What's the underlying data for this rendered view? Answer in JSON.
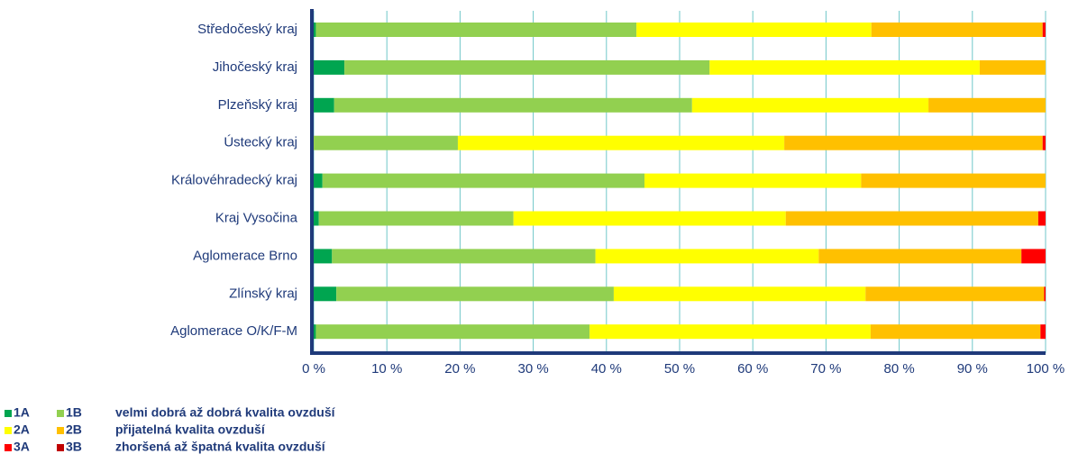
{
  "chart_data": {
    "type": "stacked-bar-horizontal",
    "categories": [
      "Středočeský kraj",
      "Jihočeský kraj",
      "Plzeňský kraj",
      "Ústecký kraj",
      "Královéhradecký kraj",
      "Kraj Vysočina",
      "Aglomerace Brno",
      "Zlínský kraj",
      "Aglomerace O/K/F-M"
    ],
    "series": [
      {
        "name": "1A",
        "color": "#00a550",
        "values": [
          0.3,
          4.2,
          2.8,
          0,
          1.2,
          0.7,
          2.5,
          3.1,
          0.3
        ]
      },
      {
        "name": "1B",
        "color": "#92d050",
        "values": [
          43.8,
          49.9,
          48.9,
          19.7,
          44.0,
          26.6,
          36.0,
          37.9,
          37.4
        ]
      },
      {
        "name": "2A",
        "color": "#ffff00",
        "values": [
          32.1,
          36.9,
          32.3,
          44.6,
          29.6,
          37.2,
          30.5,
          34.4,
          38.4
        ]
      },
      {
        "name": "2B",
        "color": "#ffc000",
        "values": [
          23.4,
          9.0,
          16.0,
          35.3,
          25.2,
          34.5,
          27.7,
          24.4,
          23.2
        ]
      },
      {
        "name": "3A",
        "color": "#ff0000",
        "values": [
          0.4,
          0,
          0,
          0.4,
          0,
          1.0,
          3.3,
          0.2,
          0.7
        ]
      },
      {
        "name": "3B",
        "color": "#c00000",
        "values": [
          0,
          0,
          0,
          0,
          0,
          0,
          0,
          0,
          0
        ]
      }
    ],
    "legend_notes": [
      "velmi dobrá až dobrá kvalita ovzduší",
      "přijatelná kvalita ovzduší",
      "zhoršená až špatná kvalita ovzduší"
    ],
    "xlim": [
      0,
      100
    ],
    "xticks": [
      {
        "value": 0,
        "label": "0 %"
      },
      {
        "value": 10,
        "label": "10 %"
      },
      {
        "value": 20,
        "label": "20 %"
      },
      {
        "value": 30,
        "label": "30 %"
      },
      {
        "value": 40,
        "label": "40 %"
      },
      {
        "value": 50,
        "label": "50 %"
      },
      {
        "value": 60,
        "label": "60 %"
      },
      {
        "value": 70,
        "label": "70 %"
      },
      {
        "value": 80,
        "label": "80 %"
      },
      {
        "value": 90,
        "label": "90 %"
      },
      {
        "value": 100,
        "label": "100 %"
      }
    ],
    "grid": true
  }
}
